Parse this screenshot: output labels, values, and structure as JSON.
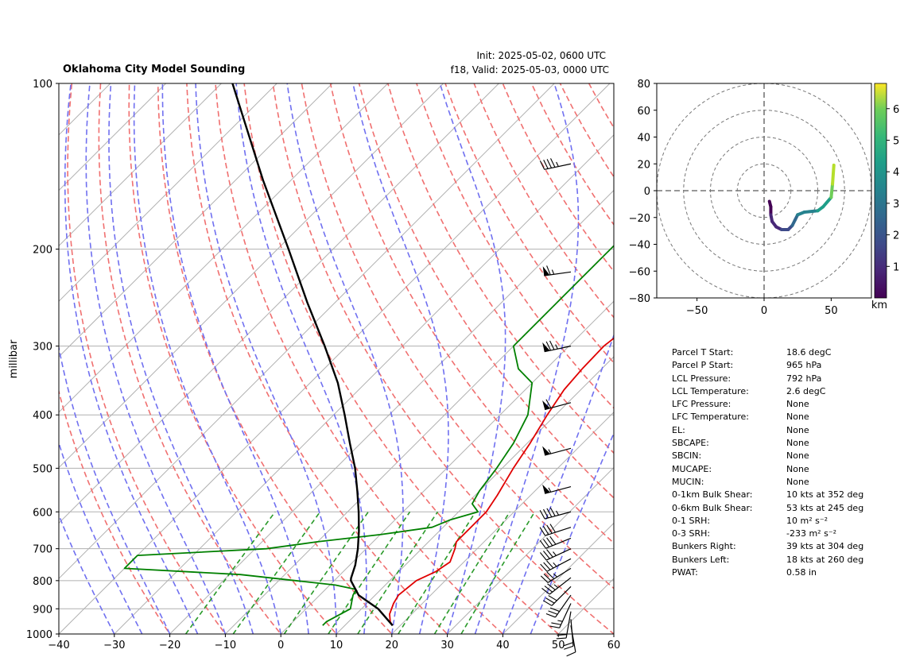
{
  "header": {
    "title": "Oklahoma City Model Sounding",
    "init": "Init: 2025-05-02, 0600 UTC",
    "valid": "f18, Valid: 2025-05-03, 0000 UTC"
  },
  "chart_data": [
    {
      "type": "line",
      "name": "skew-t",
      "ylabel": "millibar",
      "y_scale": "log",
      "xlim": [
        -40,
        60
      ],
      "ylim": [
        1000,
        100
      ],
      "x_ticks": [
        -40,
        -30,
        -20,
        -10,
        0,
        10,
        20,
        30,
        40,
        50,
        60
      ],
      "y_ticks": [
        1000,
        900,
        800,
        700,
        600,
        500,
        400,
        300,
        200,
        100
      ],
      "grid": true,
      "colors": {
        "temperature": "#e00000",
        "dewpoint": "#008000",
        "parcel": "#000000",
        "dry_adiabats": "#f07070",
        "moist_adiabats": "#7070f0",
        "mixing_ratio": "#2a9a2a",
        "isotherms": "#aaaaaa"
      },
      "series": [
        {
          "key": "temperature",
          "pressure": [
            965,
            950,
            920,
            880,
            850,
            800,
            770,
            740,
            700,
            680,
            640,
            600,
            560,
            500,
            450,
            400,
            360,
            330,
            300,
            270,
            250,
            230,
            200,
            180,
            160,
            140,
            120,
            100
          ],
          "values": [
            18.6,
            17.5,
            16.0,
            14.8,
            14.2,
            14.8,
            16.7,
            17.5,
            16.0,
            15.0,
            15.0,
            15.0,
            14.0,
            12.0,
            10.5,
            8.5,
            7.0,
            6.5,
            6.3,
            7.5,
            10.0,
            13.0,
            19.0,
            24.0,
            28.0,
            32.0,
            37.0,
            43.0
          ]
        },
        {
          "key": "dewpoint",
          "pressure": [
            965,
            950,
            900,
            850,
            830,
            815,
            800,
            780,
            760,
            740,
            720,
            700,
            680,
            660,
            640,
            620,
            600,
            580,
            550,
            500,
            450,
            400,
            350,
            330,
            300,
            270,
            250,
            220,
            200,
            180,
            150,
            120,
            100
          ],
          "values": [
            6.0,
            6.0,
            8.0,
            6.0,
            5.5,
            1.0,
            -7.0,
            -18.0,
            -40.0,
            -40.0,
            -40.0,
            -18.0,
            -10.0,
            0.0,
            8.0,
            10.0,
            13.5,
            11.0,
            10.0,
            9.0,
            7.5,
            5.0,
            0.0,
            -5.0,
            -10.0,
            -10.0,
            -10.0,
            -10.0,
            -10.0,
            -10.0,
            -12.0,
            -15.0,
            -20.0
          ]
        },
        {
          "key": "parcel",
          "pressure": [
            965,
            900,
            850,
            800,
            792,
            750,
            700,
            650,
            600,
            550,
            500,
            450,
            400,
            350,
            300,
            250,
            200,
            150,
            100
          ],
          "values": [
            18.6,
            13.0,
            7.0,
            3.0,
            2.6,
            1.0,
            -1.5,
            -4.5,
            -8.0,
            -12.0,
            -16.5,
            -22.0,
            -28.0,
            -35.0,
            -44.0,
            -55.0,
            -68.0,
            -85.0,
            -108.0
          ]
        }
      ],
      "wind_barbs": [
        {
          "p": 965,
          "speed_kt": 12,
          "dir_deg": 170
        },
        {
          "p": 940,
          "speed_kt": 18,
          "dir_deg": 175
        },
        {
          "p": 910,
          "speed_kt": 22,
          "dir_deg": 190
        },
        {
          "p": 880,
          "speed_kt": 26,
          "dir_deg": 205
        },
        {
          "p": 850,
          "speed_kt": 30,
          "dir_deg": 215
        },
        {
          "p": 820,
          "speed_kt": 32,
          "dir_deg": 225
        },
        {
          "p": 790,
          "speed_kt": 33,
          "dir_deg": 232
        },
        {
          "p": 760,
          "speed_kt": 34,
          "dir_deg": 238
        },
        {
          "p": 730,
          "speed_kt": 35,
          "dir_deg": 242
        },
        {
          "p": 700,
          "speed_kt": 36,
          "dir_deg": 245
        },
        {
          "p": 670,
          "speed_kt": 38,
          "dir_deg": 248
        },
        {
          "p": 640,
          "speed_kt": 40,
          "dir_deg": 252
        },
        {
          "p": 600,
          "speed_kt": 45,
          "dir_deg": 255
        },
        {
          "p": 540,
          "speed_kt": 55,
          "dir_deg": 255
        },
        {
          "p": 460,
          "speed_kt": 55,
          "dir_deg": 255
        },
        {
          "p": 380,
          "speed_kt": 60,
          "dir_deg": 255
        },
        {
          "p": 300,
          "speed_kt": 75,
          "dir_deg": 258
        },
        {
          "p": 220,
          "speed_kt": 65,
          "dir_deg": 262
        },
        {
          "p": 140,
          "speed_kt": 45,
          "dir_deg": 258
        }
      ]
    },
    {
      "type": "line",
      "name": "hodograph",
      "xlim": [
        -80,
        80
      ],
      "ylim": [
        -80,
        80
      ],
      "x_ticks": [
        -50,
        0,
        50
      ],
      "y_ticks": [
        -80,
        -60,
        -40,
        -20,
        0,
        20,
        40,
        60,
        80
      ],
      "rings": [
        20,
        40,
        60,
        80
      ],
      "colorbar": {
        "label": "km",
        "ticks": [
          1,
          2,
          3,
          4,
          5,
          6
        ],
        "range": [
          0,
          6.8
        ]
      },
      "u": [
        4,
        5,
        5,
        6,
        9,
        13,
        18,
        21,
        23,
        25,
        30,
        40,
        44,
        50,
        51,
        52
      ],
      "v": [
        -8,
        -12,
        -18,
        -23,
        -27,
        -29,
        -29,
        -26,
        -22,
        -18,
        -16,
        -15,
        -12,
        -5,
        5,
        19
      ],
      "height_km": [
        0.05,
        0.3,
        0.6,
        0.9,
        1.2,
        1.5,
        1.8,
        2.1,
        2.4,
        2.7,
        3.0,
        3.3,
        3.6,
        4.2,
        5.5,
        6.5
      ]
    }
  ],
  "stats": [
    {
      "label": "Parcel T Start:",
      "value": "18.6 degC"
    },
    {
      "label": "Parcel P Start:",
      "value": "965 hPa"
    },
    {
      "label": "LCL Pressure:",
      "value": "792 hPa"
    },
    {
      "label": "LCL Temperature:",
      "value": "2.6 degC"
    },
    {
      "label": "LFC Pressure:",
      "value": "None"
    },
    {
      "label": "LFC Temperature:",
      "value": "None"
    },
    {
      "label": "EL:",
      "value": "None"
    },
    {
      "label": "SBCAPE:",
      "value": "None"
    },
    {
      "label": "SBCIN:",
      "value": "None"
    },
    {
      "label": "MUCAPE:",
      "value": "None"
    },
    {
      "label": "MUCIN:",
      "value": "None"
    },
    {
      "label": "0-1km Bulk Shear:",
      "value": "10 kts at 352 deg"
    },
    {
      "label": "0-6km Bulk Shear:",
      "value": "53 kts at 245 deg"
    },
    {
      "label": "0-1 SRH:",
      "value": "10 m² s⁻²"
    },
    {
      "label": "0-3 SRH:",
      "value": "-233 m² s⁻²"
    },
    {
      "label": "Bunkers Right:",
      "value": "39 kts at 304 deg"
    },
    {
      "label": "Bunkers Left:",
      "value": "18 kts at 260 deg"
    },
    {
      "label": "PWAT:",
      "value": "0.58 in"
    }
  ]
}
